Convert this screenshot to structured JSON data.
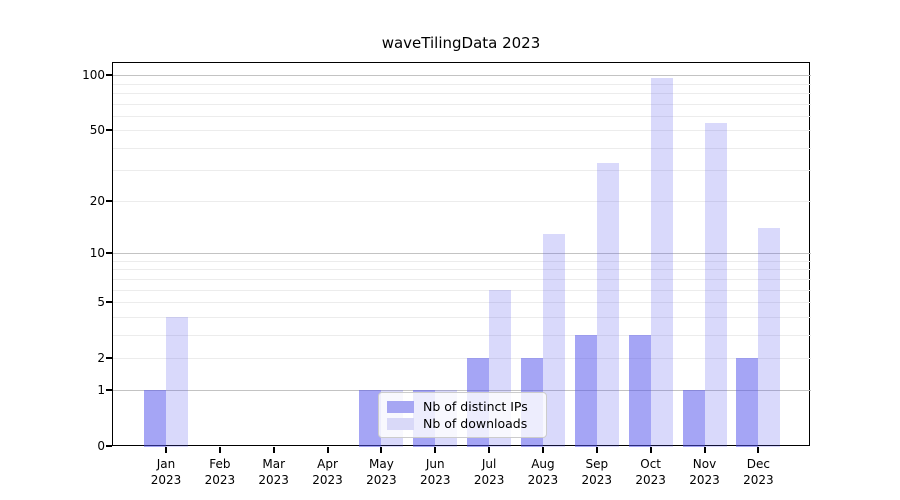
{
  "figure": {
    "background": "#ffffff",
    "frame_color": "#000000",
    "major_grid_color": "#c3c3c3",
    "minor_grid_color": "#ececec"
  },
  "chart_data": {
    "type": "bar",
    "title": "waveTilingData 2023",
    "xlabel": "",
    "ylabel": "",
    "categories": [
      {
        "month": "Jan",
        "year": "2023"
      },
      {
        "month": "Feb",
        "year": "2023"
      },
      {
        "month": "Mar",
        "year": "2023"
      },
      {
        "month": "Apr",
        "year": "2023"
      },
      {
        "month": "May",
        "year": "2023"
      },
      {
        "month": "Jun",
        "year": "2023"
      },
      {
        "month": "Jul",
        "year": "2023"
      },
      {
        "month": "Aug",
        "year": "2023"
      },
      {
        "month": "Sep",
        "year": "2023"
      },
      {
        "month": "Oct",
        "year": "2023"
      },
      {
        "month": "Nov",
        "year": "2023"
      },
      {
        "month": "Dec",
        "year": "2023"
      }
    ],
    "series": [
      {
        "name": "Nb of distinct IPs",
        "color": "rgba(82,82,235,0.52)",
        "legend_color": "#a6a6f3",
        "values": [
          1,
          0,
          0,
          0,
          1,
          1,
          2,
          2,
          3,
          3,
          1,
          2
        ]
      },
      {
        "name": "Nb of downloads",
        "color": "rgba(82,82,235,0.22)",
        "legend_color": "#d9d9f8",
        "values": [
          4,
          0,
          0,
          0,
          1,
          1,
          6,
          13,
          33,
          96,
          55,
          14
        ]
      }
    ],
    "yaxis": {
      "scale": "log1p",
      "ticks": [
        0,
        1,
        2,
        5,
        10,
        20,
        50,
        100
      ],
      "major_gridlines": [
        1,
        10,
        100
      ],
      "minor_gridlines": [
        2,
        3,
        4,
        5,
        6,
        7,
        8,
        9,
        20,
        30,
        40,
        50,
        60,
        70,
        80,
        90
      ],
      "range_top": 121
    },
    "grid": true,
    "legend_position": "lower center"
  }
}
